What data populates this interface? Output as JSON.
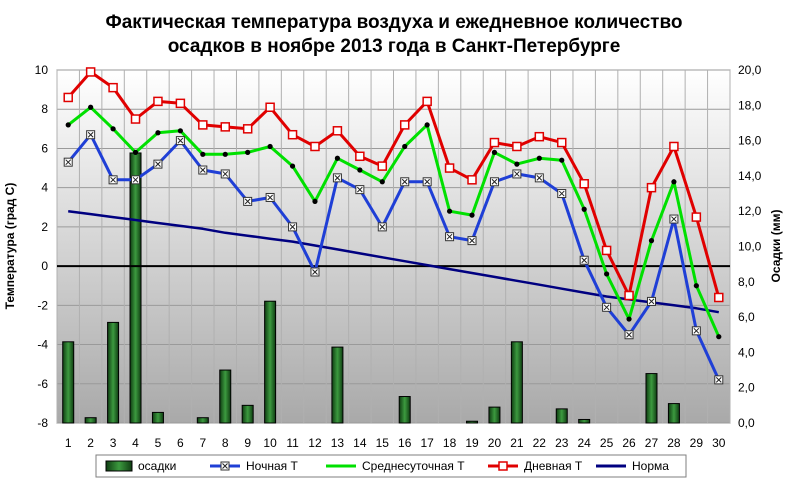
{
  "chart_data": {
    "type": "line",
    "title_line1": "Фактическая температура воздуха и ежедневное количество",
    "title_line2": "осадков в ноябре 2013 года в Санкт-Петербурге",
    "ylabel": "Температура (град С)",
    "y2label": "Осадки (мм)",
    "xlabel": "",
    "categories": [
      "1",
      "2",
      "3",
      "4",
      "5",
      "6",
      "7",
      "8",
      "9",
      "10",
      "11",
      "12",
      "13",
      "14",
      "15",
      "16",
      "17",
      "18",
      "19",
      "20",
      "21",
      "22",
      "23",
      "24",
      "25",
      "26",
      "27",
      "28",
      "29",
      "30"
    ],
    "ylim": [
      -8,
      10
    ],
    "y2lim": [
      0.0,
      20.0
    ],
    "y_ticks": [
      "-8",
      "-6",
      "-4",
      "-2",
      "0",
      "2",
      "4",
      "6",
      "8",
      "10"
    ],
    "y2_ticks": [
      "0,0",
      "2,0",
      "4,0",
      "6,0",
      "8,0",
      "10,0",
      "12,0",
      "14,0",
      "16,0",
      "18,0",
      "20,0"
    ],
    "grid": true,
    "legend_position": "bottom",
    "bar_series": {
      "name": "осадки",
      "color": "#2e7d32",
      "values": [
        4.6,
        0.3,
        5.7,
        15.3,
        0.6,
        0.0,
        0.3,
        3.0,
        1.0,
        6.9,
        0.0,
        0.0,
        4.3,
        0.0,
        0.0,
        1.5,
        0.0,
        0.0,
        0.1,
        0.9,
        4.6,
        0.0,
        0.8,
        0.2,
        0.0,
        0.0,
        2.8,
        1.1,
        0.0,
        0.0
      ]
    },
    "series": [
      {
        "name": "Ночная Т",
        "color": "#1f3fd6",
        "marker": "x-box",
        "values": [
          5.3,
          6.7,
          4.4,
          4.4,
          5.2,
          6.4,
          4.9,
          4.7,
          3.3,
          3.5,
          2.0,
          -0.3,
          4.5,
          3.9,
          2.0,
          4.3,
          4.3,
          1.5,
          1.3,
          4.3,
          4.7,
          4.5,
          3.7,
          0.3,
          -2.1,
          -3.5,
          -1.8,
          2.4,
          -3.3,
          -5.8
        ]
      },
      {
        "name": "Среднесуточная Т",
        "color": "#00e000",
        "marker": "dot",
        "values": [
          7.2,
          8.1,
          7.0,
          5.8,
          6.8,
          6.9,
          5.7,
          5.7,
          5.8,
          6.1,
          5.1,
          3.3,
          5.5,
          4.9,
          4.3,
          6.1,
          7.2,
          2.8,
          2.6,
          5.8,
          5.2,
          5.5,
          5.4,
          2.9,
          -0.4,
          -2.7,
          1.3,
          4.3,
          -1.0,
          -3.6
        ]
      },
      {
        "name": "Дневная Т",
        "color": "#e00000",
        "marker": "square",
        "values": [
          8.6,
          9.9,
          9.1,
          7.5,
          8.4,
          8.3,
          7.2,
          7.1,
          7.0,
          8.1,
          6.7,
          6.1,
          6.9,
          5.6,
          5.1,
          7.2,
          8.4,
          5.0,
          4.4,
          6.3,
          6.1,
          6.6,
          6.3,
          4.2,
          0.8,
          -1.5,
          4.0,
          6.1,
          2.5,
          -1.6
        ]
      },
      {
        "name": "Норма",
        "color": "#000080",
        "marker": "none",
        "values": [
          2.8,
          2.65,
          2.5,
          2.35,
          2.2,
          2.05,
          1.9,
          1.7,
          1.55,
          1.4,
          1.25,
          1.05,
          0.85,
          0.65,
          0.45,
          0.25,
          0.05,
          -0.15,
          -0.35,
          -0.55,
          -0.75,
          -0.95,
          -1.15,
          -1.35,
          -1.55,
          -1.7,
          -1.85,
          -2.0,
          -2.15,
          -2.35
        ]
      }
    ]
  }
}
